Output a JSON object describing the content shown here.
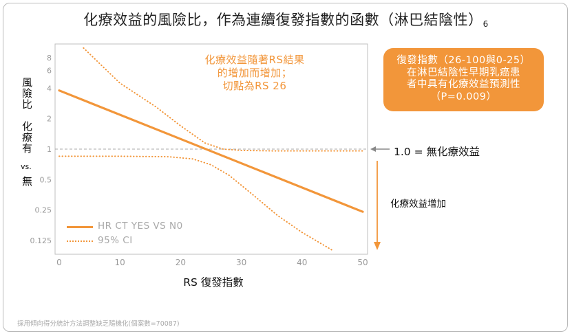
{
  "title": "化療效益的風險比，作為連續復發指數的函數（淋巴結陰性）",
  "title_sup": "6",
  "y_label": [
    "風險比",
    "化療有",
    "vs.",
    "無"
  ],
  "callout": [
    "復發指數（26-100與0-25）",
    "在淋巴結陰性早期乳癌患",
    "者中具有化療效益預測性",
    "（P=0.009）"
  ],
  "annotation": [
    "化療效益隨著RS結果",
    "的增加而增加；",
    "切點為RS 26"
  ],
  "reference_label": "1.0 = 無化療效益",
  "arrow_label": "化療效益增加",
  "footnote": "採用傾向得分統計方法調整缺乏隨機化(個案數=70087)",
  "colors": {
    "orange": "#f2963a",
    "reference_line": "#aaaaaa",
    "axis": "#bfbfbf",
    "tick_text": "#9a9a9a"
  },
  "chart_data": {
    "type": "line",
    "title": "化療效益的風險比，作為連續復發指數的函數（淋巴結陰性）",
    "xlabel": "RS 復發指數",
    "ylabel": "風險比 化療有 vs. 無",
    "x_scale": "linear",
    "y_scale": "log2",
    "xlim": [
      0,
      52
    ],
    "ylim": [
      0.1,
      10
    ],
    "x_ticks": [
      "0",
      "10",
      "20",
      "30",
      "40",
      "50"
    ],
    "y_ticks": [
      "0.125",
      "0.25",
      "0.5",
      "1",
      "2",
      "4",
      "6",
      "8"
    ],
    "reference_y": 1.0,
    "grid": false,
    "legend_position": "lower-left",
    "series": [
      {
        "name": "HR CT YES VS N0",
        "style": "solid",
        "x": [
          0,
          50
        ],
        "y": [
          3.8,
          0.24
        ]
      },
      {
        "name": "95% CI",
        "style": "dotted",
        "part": "upper",
        "x": [
          4,
          10,
          16,
          20,
          24,
          27,
          30,
          35,
          40,
          45,
          50
        ],
        "y": [
          10,
          4.5,
          2.6,
          1.7,
          1.15,
          1.0,
          0.97,
          0.96,
          0.96,
          0.96,
          0.96
        ]
      },
      {
        "name": "95% CI",
        "style": "dotted",
        "part": "lower",
        "x": [
          0,
          10,
          18,
          22,
          25,
          28,
          32,
          36,
          40,
          45
        ],
        "y": [
          0.85,
          0.85,
          0.84,
          0.8,
          0.7,
          0.55,
          0.35,
          0.22,
          0.15,
          0.1
        ]
      }
    ]
  }
}
